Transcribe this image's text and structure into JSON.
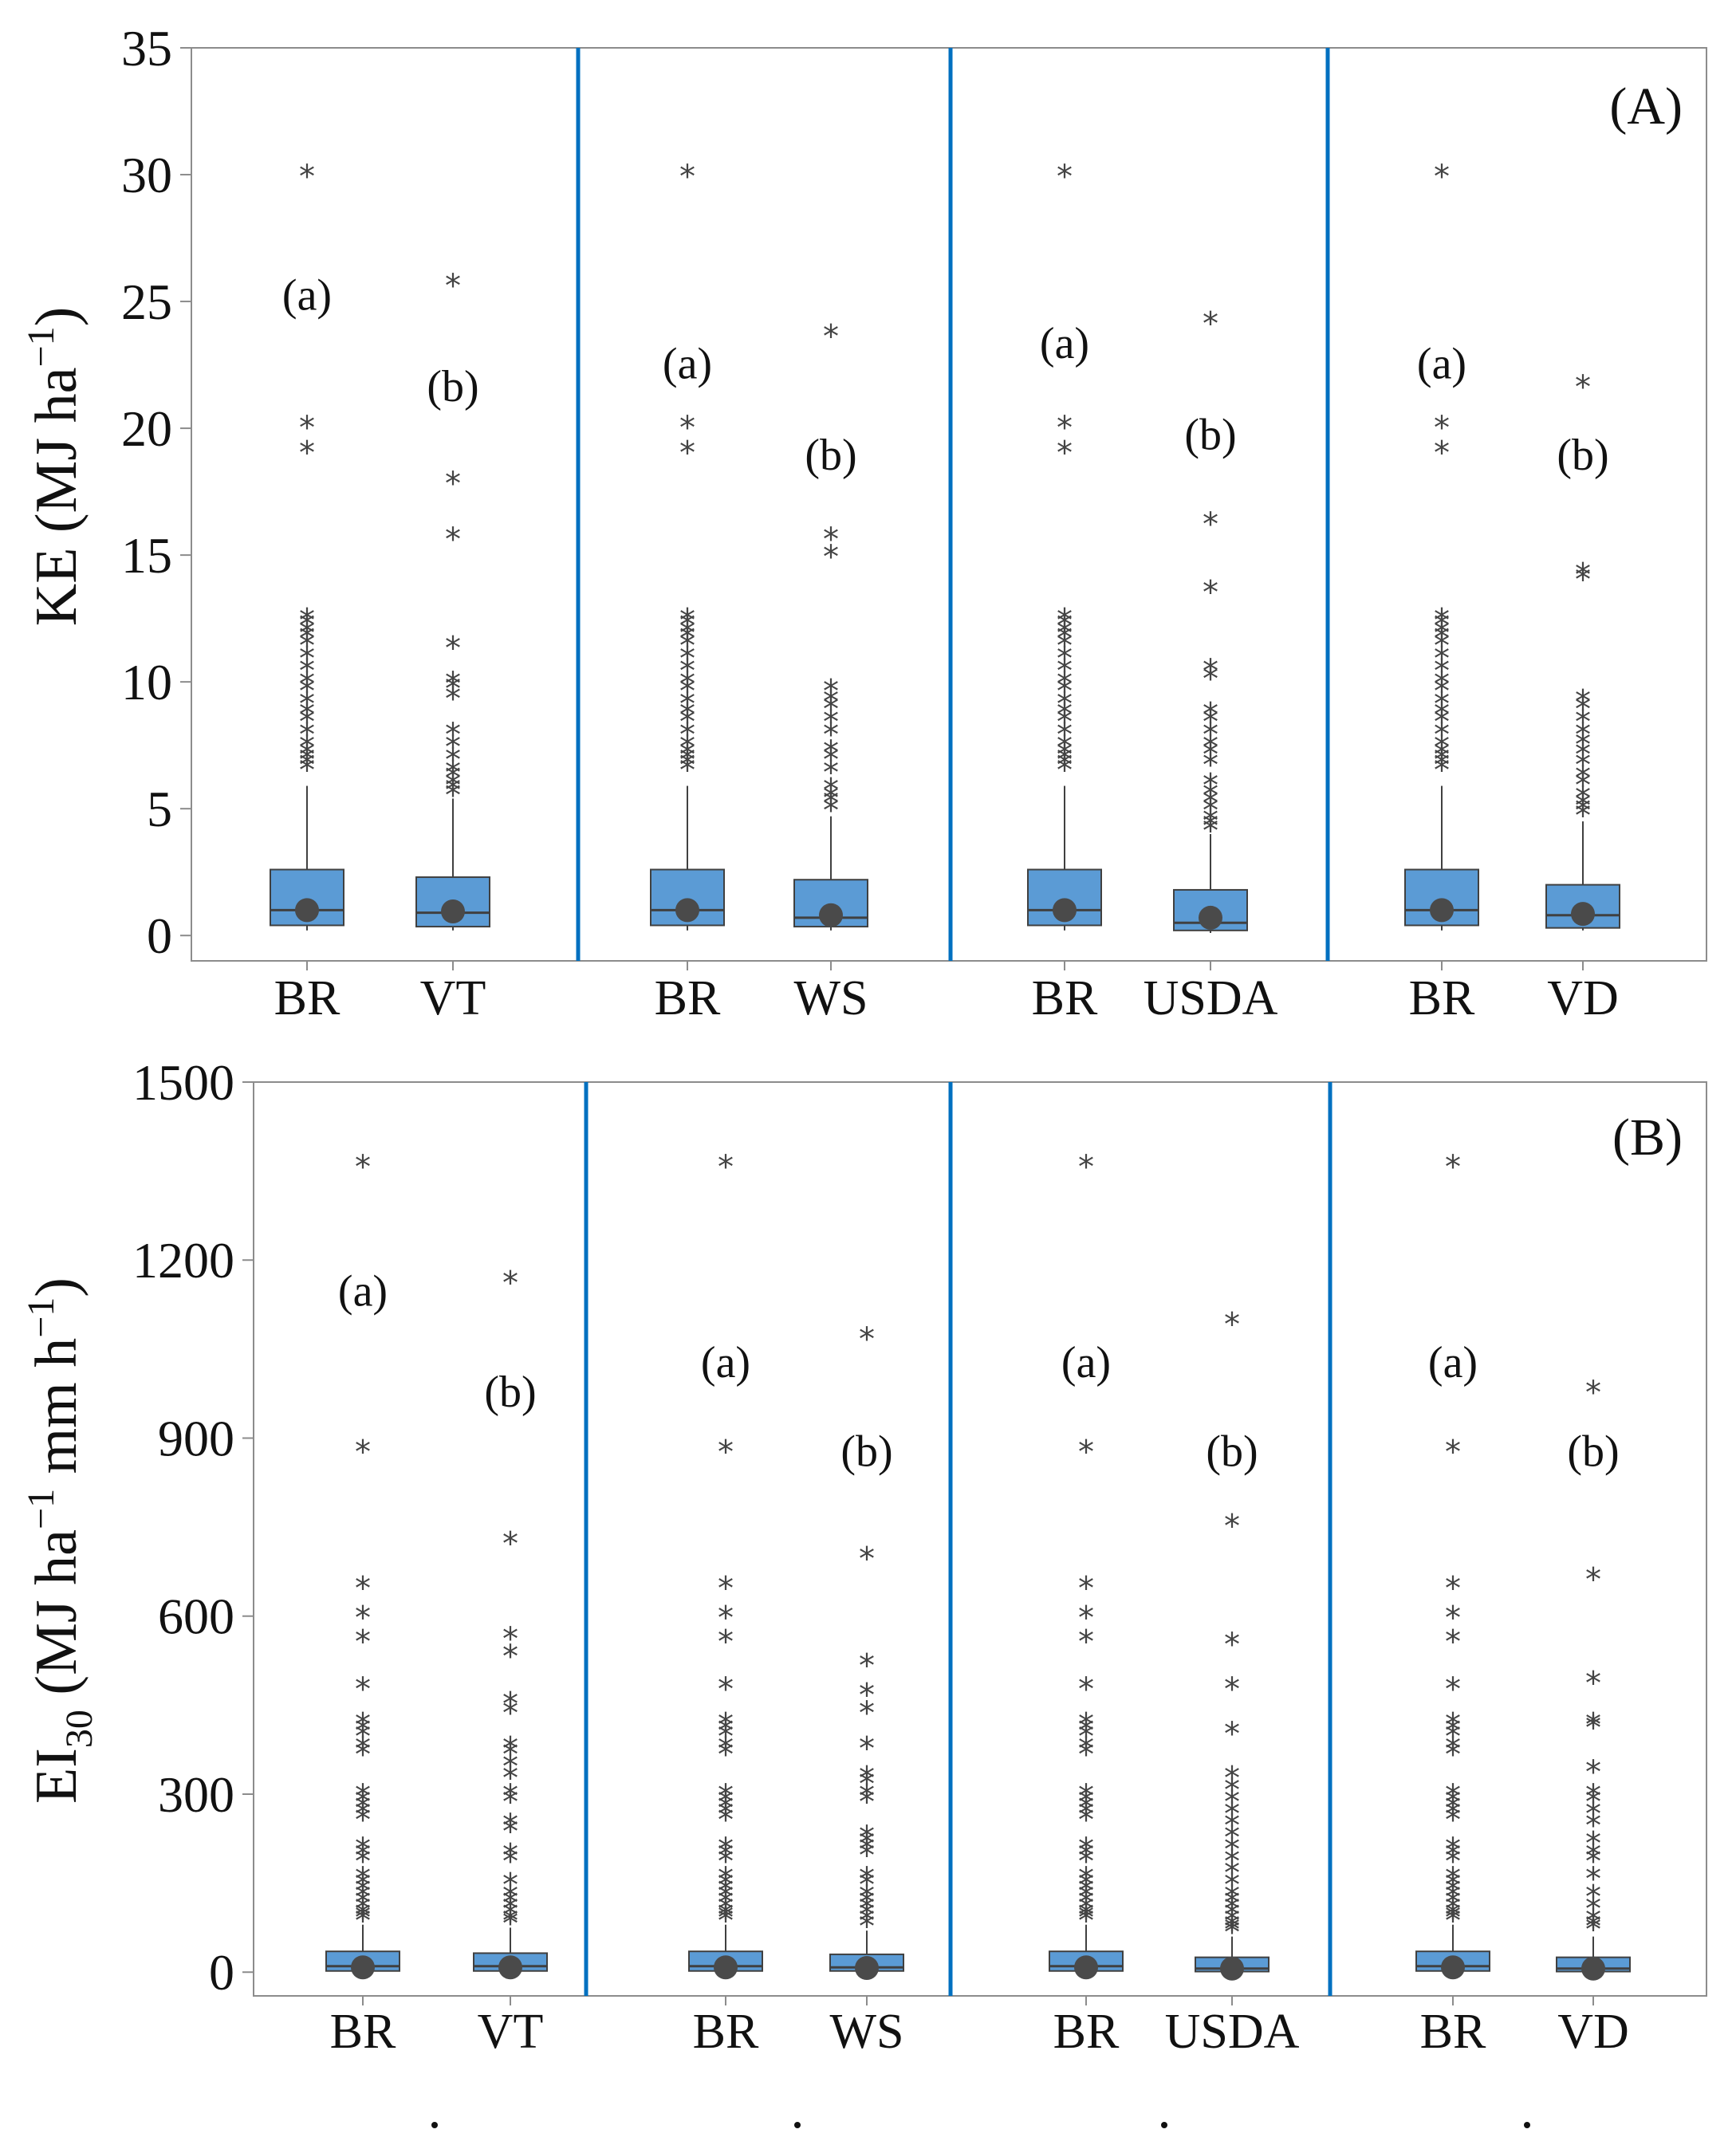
{
  "chart_data": [
    {
      "type": "box",
      "panel_label": "(A)",
      "ylabel": "KE (MJ ha⁻¹)",
      "ylabel_main": "KE (MJ ha",
      "ylabel_sup": "−1",
      "ylabel_tail": ")",
      "ylim": [
        -1,
        35
      ],
      "yticks": [
        0,
        5,
        10,
        15,
        20,
        25,
        30,
        35
      ],
      "groups": [
        {
          "boxes": [
            {
              "category": "BR",
              "letter": "(a)",
              "letter_y": 25.3,
              "q1": 0.4,
              "median": 1.0,
              "q3": 2.6,
              "whisker_low": 0.2,
              "whisker_high": 5.9,
              "mean": 1.0,
              "outliers": [
                30.0,
                20.1,
                19.1,
                12.5,
                12.3,
                12.0,
                11.8,
                11.5,
                11.0,
                10.5,
                10.0,
                9.7,
                9.2,
                8.8,
                8.5,
                8.0,
                7.5,
                7.2,
                7.0,
                6.8,
                6.6
              ]
            },
            {
              "category": "VT",
              "letter": "(b)",
              "letter_y": 21.7,
              "q1": 0.35,
              "median": 0.9,
              "q3": 2.3,
              "whisker_low": 0.2,
              "whisker_high": 5.4,
              "mean": 0.95,
              "outliers": [
                25.7,
                17.9,
                15.7,
                11.4,
                10.0,
                9.8,
                9.4,
                8.0,
                7.5,
                7.0,
                6.5,
                6.3,
                6.0,
                5.8,
                5.6
              ]
            }
          ]
        },
        {
          "boxes": [
            {
              "category": "BR",
              "letter": "(a)",
              "letter_y": 22.6,
              "q1": 0.4,
              "median": 1.0,
              "q3": 2.6,
              "whisker_low": 0.2,
              "whisker_high": 5.9,
              "mean": 1.0,
              "outliers": [
                30.0,
                20.1,
                19.1,
                12.5,
                12.3,
                12.0,
                11.8,
                11.5,
                11.0,
                10.5,
                10.0,
                9.7,
                9.2,
                8.8,
                8.5,
                8.0,
                7.5,
                7.2,
                7.0,
                6.8,
                6.6
              ]
            },
            {
              "category": "WS",
              "letter": "(b)",
              "letter_y": 19.0,
              "q1": 0.35,
              "median": 0.7,
              "q3": 2.2,
              "whisker_low": 0.2,
              "whisker_high": 4.7,
              "mean": 0.8,
              "outliers": [
                23.7,
                15.7,
                15.0,
                9.7,
                9.3,
                9.0,
                8.5,
                8.0,
                7.3,
                7.0,
                6.5,
                5.8,
                5.5,
                5.3,
                5.0
              ]
            }
          ]
        },
        {
          "boxes": [
            {
              "category": "BR",
              "letter": "(a)",
              "letter_y": 23.4,
              "q1": 0.4,
              "median": 1.0,
              "q3": 2.6,
              "whisker_low": 0.2,
              "whisker_high": 5.9,
              "mean": 1.0,
              "outliers": [
                30.0,
                20.1,
                19.1,
                12.5,
                12.3,
                12.0,
                11.8,
                11.5,
                11.0,
                10.5,
                10.0,
                9.7,
                9.2,
                8.8,
                8.5,
                8.0,
                7.5,
                7.2,
                7.0,
                6.8,
                6.6
              ]
            },
            {
              "category": "USDA",
              "letter": "(b)",
              "letter_y": 19.8,
              "q1": 0.2,
              "median": 0.5,
              "q3": 1.8,
              "whisker_low": 0.1,
              "whisker_high": 4.0,
              "mean": 0.7,
              "outliers": [
                24.2,
                16.3,
                13.6,
                10.5,
                10.2,
                8.8,
                8.5,
                8.0,
                7.5,
                7.2,
                6.8,
                6.0,
                5.6,
                5.3,
                5.0,
                4.6,
                4.4,
                4.2
              ]
            }
          ]
        },
        {
          "boxes": [
            {
              "category": "BR",
              "letter": "(a)",
              "letter_y": 22.6,
              "q1": 0.4,
              "median": 1.0,
              "q3": 2.6,
              "whisker_low": 0.2,
              "whisker_high": 5.9,
              "mean": 1.0,
              "outliers": [
                30.0,
                20.1,
                19.1,
                12.5,
                12.3,
                12.0,
                11.8,
                11.5,
                11.0,
                10.5,
                10.0,
                9.7,
                9.2,
                8.8,
                8.5,
                8.0,
                7.5,
                7.2,
                7.0,
                6.8,
                6.6
              ]
            },
            {
              "category": "VD",
              "letter": "(b)",
              "letter_y": 19.0,
              "q1": 0.3,
              "median": 0.8,
              "q3": 2.0,
              "whisker_low": 0.2,
              "whisker_high": 4.5,
              "mean": 0.85,
              "outliers": [
                21.7,
                14.3,
                14.1,
                9.3,
                9.0,
                8.5,
                8.0,
                7.6,
                7.2,
                6.8,
                6.3,
                6.0,
                5.5,
                5.2,
                5.0,
                4.8
              ]
            }
          ]
        }
      ]
    },
    {
      "type": "box",
      "panel_label": "(B)",
      "ylabel_main": "EI",
      "ylabel_sub": "30",
      "ylabel_mid": " (MJ ha",
      "ylabel_sup1": "−1",
      "ylabel_mid2": " mm h",
      "ylabel_sup2": "−1",
      "ylabel_tail": ")",
      "ylim": [
        -40,
        1500
      ],
      "yticks": [
        0,
        300,
        600,
        900,
        1200,
        1500
      ],
      "groups": [
        {
          "boxes": [
            {
              "category": "BR",
              "letter": "(a)",
              "letter_y": 1150,
              "q1": 2,
              "median": 10,
              "q3": 35,
              "whisker_low": 0,
              "whisker_high": 80,
              "mean": 8,
              "outliers": [
                1360,
                880,
                650,
                600,
                560,
                480,
                420,
                410,
                400,
                380,
                370,
                300,
                290,
                280,
                270,
                260,
                210,
                200,
                190,
                160,
                150,
                140,
                130,
                120,
                110,
                100,
                95,
                90
              ]
            },
            {
              "category": "VT",
              "letter": "(b)",
              "letter_y": 980,
              "q1": 2,
              "median": 10,
              "q3": 32,
              "whisker_low": 0,
              "whisker_high": 75,
              "mean": 8,
              "outliers": [
                1165,
                725,
                565,
                535,
                455,
                440,
                380,
                370,
                350,
                330,
                300,
                290,
                250,
                240,
                200,
                190,
                150,
                130,
                120,
                110,
                100,
                90,
                85
              ]
            }
          ]
        },
        {
          "boxes": [
            {
              "category": "BR",
              "letter": "(a)",
              "letter_y": 1030,
              "q1": 2,
              "median": 10,
              "q3": 35,
              "whisker_low": 0,
              "whisker_high": 80,
              "mean": 8,
              "outliers": [
                1360,
                880,
                650,
                600,
                560,
                480,
                420,
                410,
                400,
                380,
                370,
                300,
                290,
                280,
                270,
                260,
                210,
                200,
                190,
                160,
                150,
                140,
                130,
                120,
                110,
                100,
                95,
                90
              ]
            },
            {
              "category": "WS",
              "letter": "(b)",
              "letter_y": 880,
              "q1": 2,
              "median": 8,
              "q3": 30,
              "whisker_low": 0,
              "whisker_high": 70,
              "mean": 7,
              "outliers": [
                1070,
                700,
                520,
                470,
                440,
                380,
                330,
                320,
                300,
                290,
                230,
                220,
                210,
                200,
                160,
                150,
                130,
                120,
                110,
                100,
                90,
                80
              ]
            }
          ]
        },
        {
          "boxes": [
            {
              "category": "BR",
              "letter": "(a)",
              "letter_y": 1030,
              "q1": 2,
              "median": 10,
              "q3": 35,
              "whisker_low": 0,
              "whisker_high": 80,
              "mean": 8,
              "outliers": [
                1360,
                880,
                650,
                600,
                560,
                480,
                420,
                410,
                400,
                380,
                370,
                300,
                290,
                280,
                270,
                260,
                210,
                200,
                190,
                160,
                150,
                140,
                130,
                120,
                110,
                100,
                95,
                90
              ]
            },
            {
              "category": "USDA",
              "letter": "(b)",
              "letter_y": 880,
              "q1": 1,
              "median": 6,
              "q3": 25,
              "whisker_low": 0,
              "whisker_high": 60,
              "mean": 6,
              "outliers": [
                1095,
                755,
                555,
                480,
                405,
                330,
                310,
                290,
                270,
                250,
                230,
                210,
                190,
                170,
                150,
                130,
                120,
                110,
                100,
                90,
                80,
                75,
                70
              ]
            }
          ]
        },
        {
          "boxes": [
            {
              "category": "BR",
              "letter": "(a)",
              "letter_y": 1030,
              "q1": 2,
              "median": 10,
              "q3": 35,
              "whisker_low": 0,
              "whisker_high": 80,
              "mean": 8,
              "outliers": [
                1360,
                880,
                650,
                600,
                560,
                480,
                420,
                410,
                400,
                380,
                370,
                300,
                290,
                280,
                270,
                260,
                210,
                200,
                190,
                160,
                150,
                140,
                130,
                120,
                110,
                100,
                95,
                90
              ]
            },
            {
              "category": "VD",
              "letter": "(b)",
              "letter_y": 880,
              "q1": 1,
              "median": 6,
              "q3": 25,
              "whisker_low": 0,
              "whisker_high": 60,
              "mean": 6,
              "outliers": [
                980,
                665,
                490,
                420,
                415,
                340,
                300,
                290,
                270,
                250,
                220,
                200,
                190,
                160,
                130,
                110,
                90,
                80,
                75
              ]
            }
          ]
        }
      ]
    }
  ],
  "colors": {
    "box_fill": "#5b9bd5",
    "box_stroke": "#404040",
    "divider": "#0070c0",
    "frame": "#8c8c8c",
    "outlier": "#444444",
    "mean_dot": "#4a4a4a"
  }
}
